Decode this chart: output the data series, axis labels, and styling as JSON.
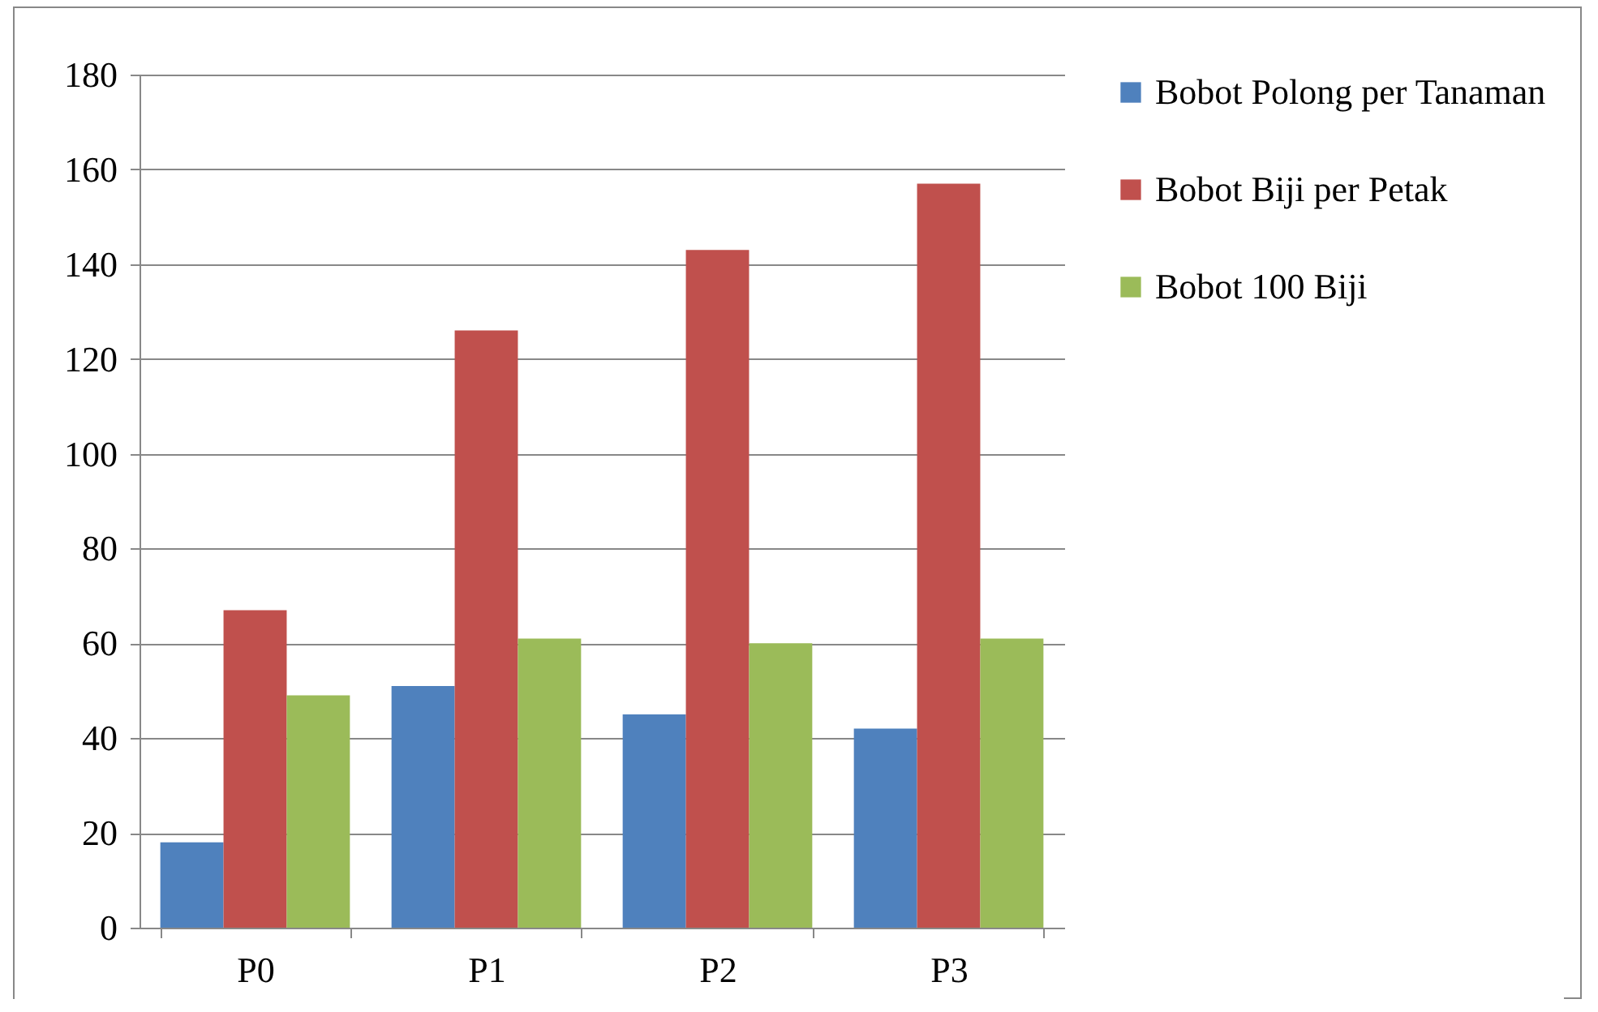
{
  "chart_data": {
    "type": "bar",
    "categories": [
      "P0",
      "P1",
      "P2",
      "P3"
    ],
    "series": [
      {
        "name": "Bobot Polong per Tanaman",
        "color": "#4f81bd",
        "values": [
          18,
          51,
          45,
          42
        ]
      },
      {
        "name": "Bobot Biji per Petak",
        "color": "#c0504d",
        "values": [
          67,
          126,
          143,
          157
        ]
      },
      {
        "name": "Bobot 100 Biji",
        "color": "#9bbb59",
        "values": [
          49,
          61,
          60,
          61
        ]
      }
    ],
    "ylim": [
      0,
      180
    ],
    "yticks": [
      0,
      20,
      40,
      60,
      80,
      100,
      120,
      140,
      160,
      180
    ],
    "grid": "y",
    "legend": "right"
  }
}
